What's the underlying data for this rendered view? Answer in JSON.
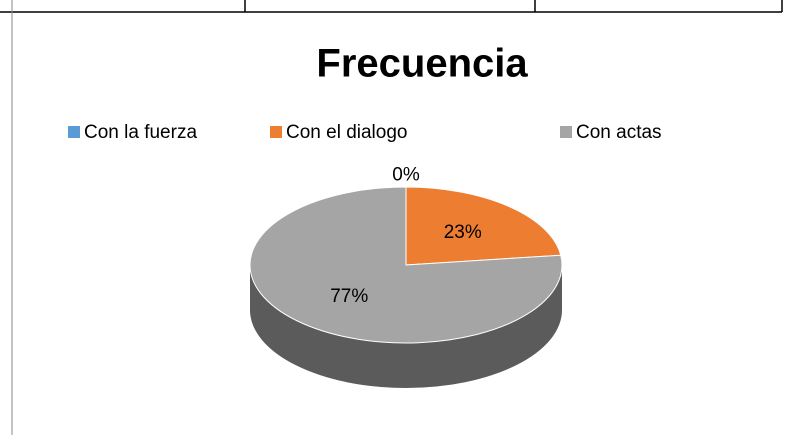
{
  "chart_data": {
    "type": "pie",
    "title": "Frecuencia",
    "categories": [
      "Con la fuerza",
      "Con el dialogo",
      "Con actas"
    ],
    "values": [
      0,
      23,
      77
    ],
    "value_labels": [
      "0%",
      "23%",
      "77%"
    ],
    "colors": [
      "#5b9bd5",
      "#ed7d31",
      "#a5a5a5"
    ],
    "legend": "top"
  }
}
